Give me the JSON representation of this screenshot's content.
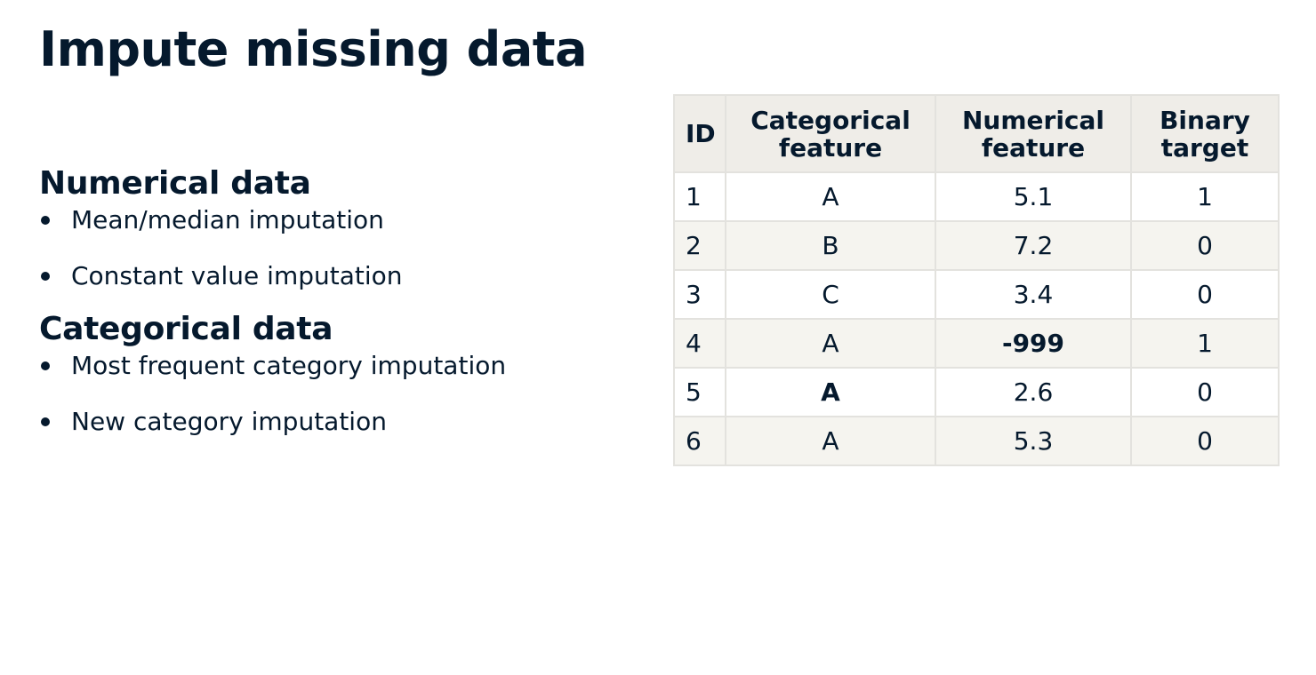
{
  "title": "Impute missing data",
  "sections": [
    {
      "heading": "Numerical data",
      "bullets": [
        "Mean/median imputation",
        "Constant value imputation"
      ]
    },
    {
      "heading": "Categorical data",
      "bullets": [
        "Most frequent category imputation",
        "New category imputation"
      ]
    }
  ],
  "table": {
    "headers": [
      [
        "ID"
      ],
      [
        "Categorical",
        "feature"
      ],
      [
        "Numerical",
        "feature"
      ],
      [
        "Binary",
        "target"
      ]
    ],
    "rows": [
      [
        "1",
        "A",
        "5.1",
        "1"
      ],
      [
        "2",
        "B",
        "7.2",
        "0"
      ],
      [
        "3",
        "C",
        "3.4",
        "0"
      ],
      [
        "4",
        "A",
        "-999",
        "1"
      ],
      [
        "5",
        "A",
        "2.6",
        "0"
      ],
      [
        "6",
        "A",
        "5.3",
        "0"
      ]
    ],
    "emphasized_cells": [
      {
        "row": 3,
        "col": 2
      },
      {
        "row": 4,
        "col": 1
      }
    ]
  }
}
